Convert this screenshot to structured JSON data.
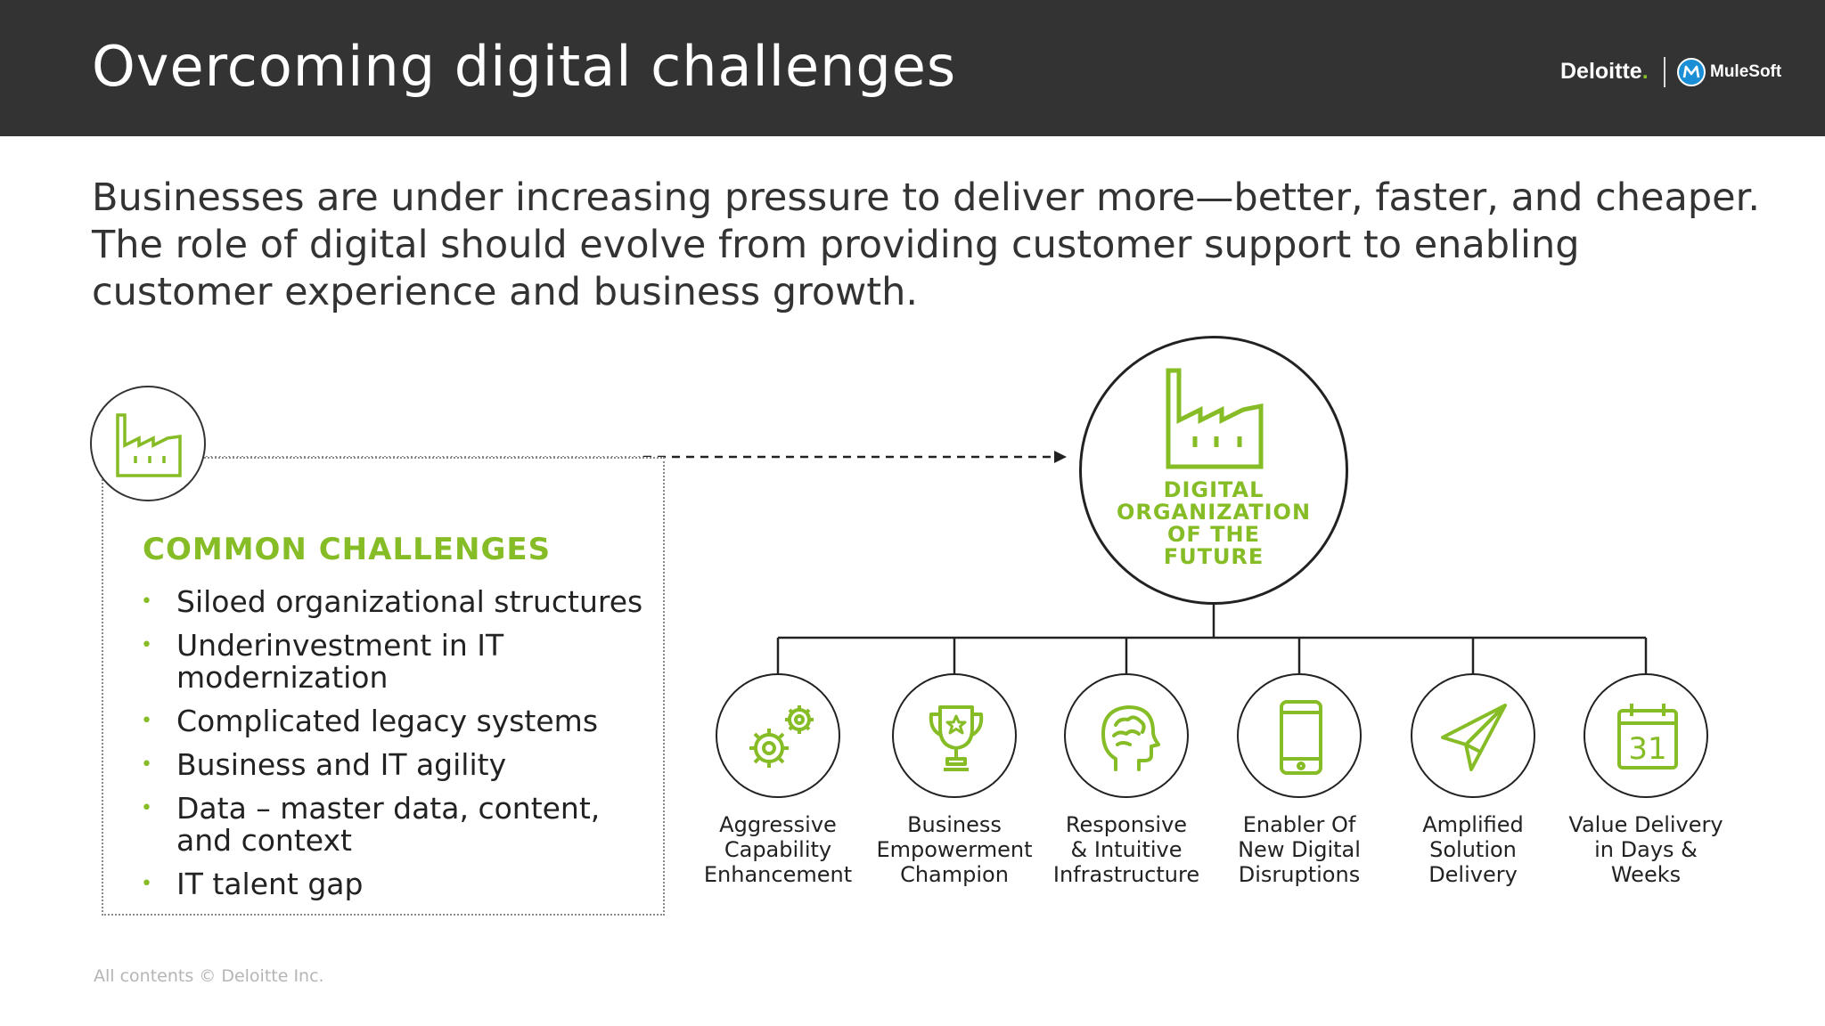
{
  "header": {
    "title": "Overcoming digital challenges",
    "logo_deloitte": "Deloitte",
    "logo_deloitte_dot": ".",
    "logo_mulesoft": "MuleSoft"
  },
  "lead_lines": [
    "Businesses are under increasing pressure to deliver more—better, faster, and cheaper.",
    "The role of digital should evolve from providing customer support to enabling",
    "customer experience and business growth."
  ],
  "challenges": {
    "title": "COMMON CHALLENGES",
    "items": [
      "Siloed organizational structures",
      "Underinvestment in IT modernization",
      "Complicated legacy systems",
      "Business and IT agility",
      "Data – master data, content, and context",
      "IT talent gap"
    ]
  },
  "hub": {
    "label_lines": [
      "DIGITAL",
      "ORGANIZATION",
      "OF THE",
      "FUTURE"
    ]
  },
  "pillars": [
    {
      "icon": "gears-icon",
      "lines": [
        "Aggressive",
        "Capability",
        "Enhancement"
      ]
    },
    {
      "icon": "trophy-icon",
      "lines": [
        "Business",
        "Empowerment",
        "Champion"
      ]
    },
    {
      "icon": "brain-icon",
      "lines": [
        "Responsive",
        "& Intuitive",
        "Infrastructure"
      ]
    },
    {
      "icon": "smartphone-icon",
      "lines": [
        "Enabler Of",
        "New Digital",
        "Disruptions"
      ]
    },
    {
      "icon": "paper-plane-icon",
      "lines": [
        "Amplified",
        "Solution",
        "Delivery"
      ]
    },
    {
      "icon": "calendar-icon",
      "lines": [
        "Value Delivery",
        "in Days &",
        "Weeks"
      ],
      "calendar_day": "31"
    }
  ],
  "footer": "All contents © Deloitte Inc.",
  "colors": {
    "header_bg": "#333333",
    "accent_green": "#86bc25",
    "text": "#222222"
  }
}
